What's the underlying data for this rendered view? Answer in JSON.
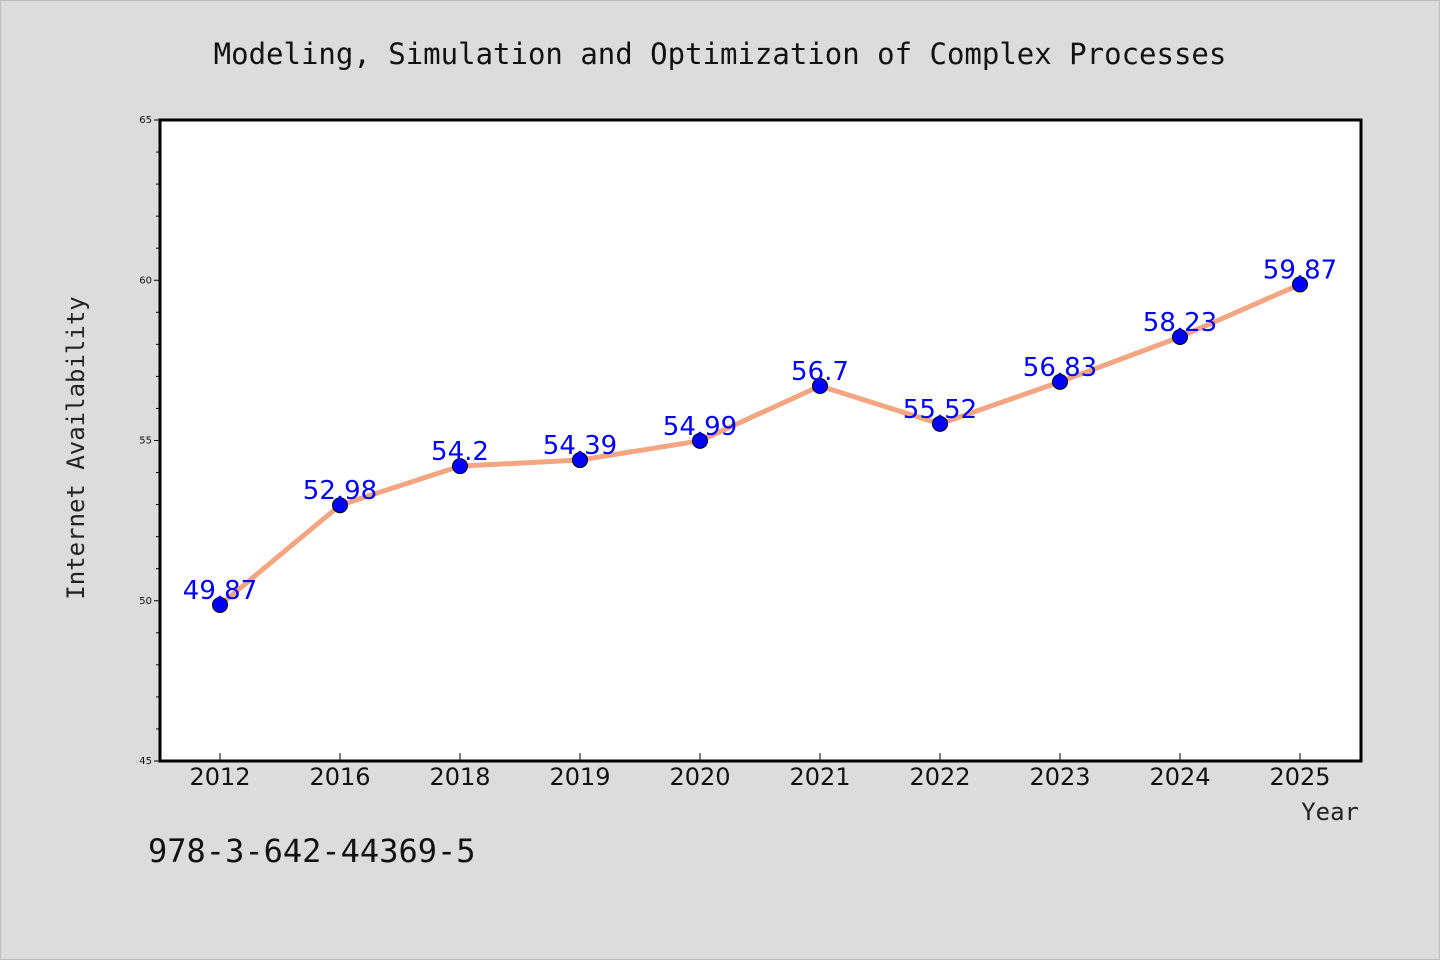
{
  "chart_data": {
    "type": "line",
    "title": "Modeling, Simulation and Optimization of Complex Processes",
    "xlabel": "Year",
    "ylabel": "Internet Availability",
    "categories": [
      "2012",
      "2016",
      "2018",
      "2019",
      "2020",
      "2021",
      "2022",
      "2023",
      "2024",
      "2025"
    ],
    "values": [
      49.87,
      52.98,
      54.2,
      54.39,
      54.99,
      56.7,
      55.52,
      56.83,
      58.23,
      59.87
    ],
    "data_labels": [
      "49.87",
      "52.98",
      "54.2",
      "54.39",
      "54.99",
      "56.7",
      "55.52",
      "56.83",
      "58.23",
      "59.87"
    ],
    "ylim": [
      45,
      65
    ],
    "yticks": [
      45,
      50,
      55,
      60,
      65
    ],
    "yticks_minor_step": 1,
    "grid": false,
    "legend": "none",
    "line_color": "#f4a582",
    "marker_color": "#0000ff",
    "label_color": "#0000ff"
  },
  "footer": {
    "isbn": "978-3-642-44369-5"
  }
}
